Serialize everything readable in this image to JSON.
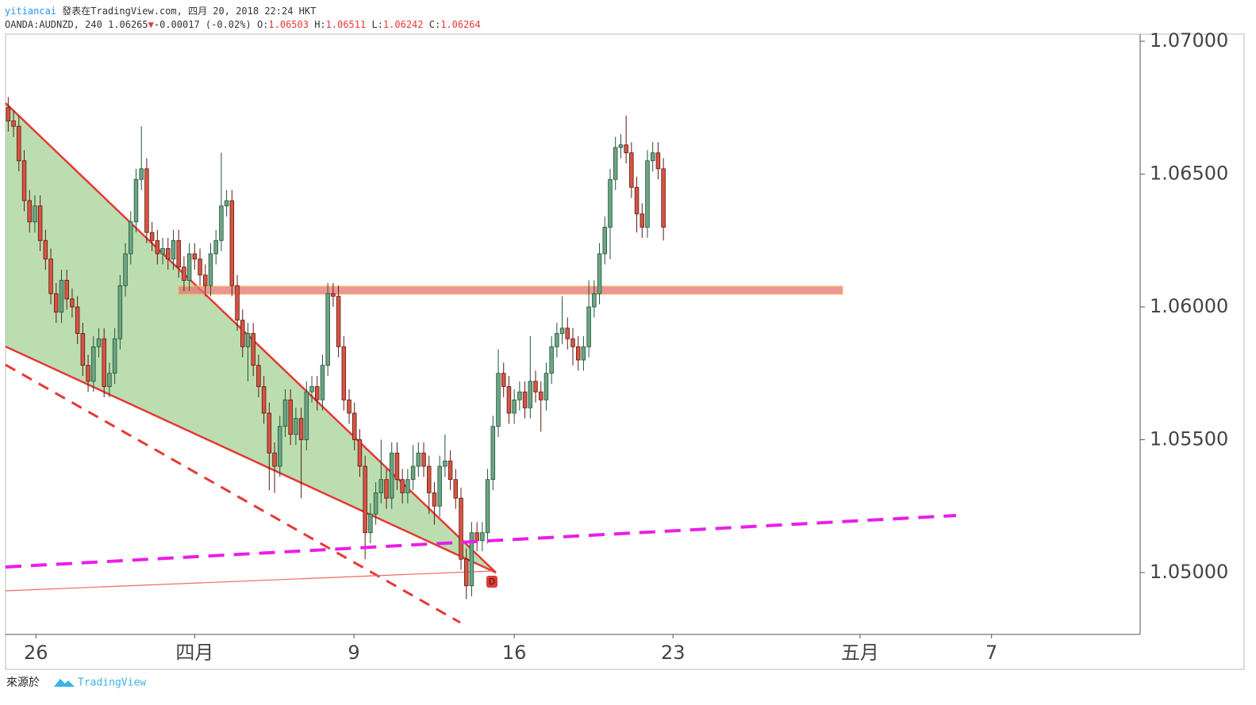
{
  "header": {
    "author": "yitiancai",
    "published": " 發表在TradingView.com, 四月 20, 2018 22:24 HKT",
    "symbol": "OANDA:AUDNZD, 240",
    "last": "1.06265",
    "change": "-0.00017 (-0.02%)",
    "open_label": "O:",
    "open": "1.06503",
    "high_label": "H:",
    "high": "1.06511",
    "low_label": "L:",
    "low": "1.06242",
    "close_label": "C:",
    "close": "1.06264"
  },
  "chart_data": {
    "type": "candlestick",
    "up_color": "#6ba583",
    "down_color": "#d75442",
    "open": [
      1.0675,
      1.067,
      1.0668,
      1.0655,
      1.064,
      1.0632,
      1.0638,
      1.0625,
      1.0618,
      1.0605,
      1.0598,
      1.061,
      1.0603,
      1.06,
      1.059,
      1.0578,
      1.0572,
      1.0585,
      1.0588,
      1.057,
      1.0575,
      1.0588,
      1.0608,
      1.062,
      1.0632,
      1.0648,
      1.0652,
      1.0628,
      1.0625,
      1.062,
      1.0622,
      1.0618,
      1.0625,
      1.0615,
      1.061,
      1.062,
      1.0618,
      1.0612,
      1.0608,
      1.062,
      1.0625,
      1.0638,
      1.064,
      1.0608,
      1.0595,
      1.0585,
      1.059,
      1.0578,
      1.057,
      1.056,
      1.0545,
      1.054,
      1.0555,
      1.0565,
      1.0552,
      1.0558,
      1.055,
      1.0568,
      1.057,
      1.0565,
      1.0578,
      1.0605,
      1.0604,
      1.0585,
      1.0565,
      1.056,
      1.055,
      1.054,
      1.0515,
      1.0522,
      1.053,
      1.0535,
      1.0528,
      1.0545,
      1.0535,
      1.053,
      1.0535,
      1.054,
      1.0545,
      1.054,
      1.053,
      1.0525,
      1.054,
      1.0542,
      1.0535,
      1.0528,
      1.0505,
      1.0495,
      1.0515,
      1.0512,
      1.0515,
      1.0535,
      1.0555,
      1.0575,
      1.057,
      1.056,
      1.0565,
      1.0568,
      1.0562,
      1.0572,
      1.0568,
      1.0565,
      1.0575,
      1.0585,
      1.059,
      1.0592,
      1.0588,
      1.0585,
      1.058,
      1.0585,
      1.06,
      1.0605,
      1.062,
      1.063,
      1.0648,
      1.066,
      1.0661,
      1.0658,
      1.0645,
      1.0635,
      1.063,
      1.0655,
      1.0658,
      1.0652
    ],
    "high": [
      1.0679,
      1.0674,
      1.0672,
      1.0659,
      1.0644,
      1.0642,
      1.0642,
      1.0629,
      1.0622,
      1.0609,
      1.0614,
      1.0614,
      1.0607,
      1.0604,
      1.0594,
      1.0582,
      1.0589,
      1.0592,
      1.0592,
      1.0579,
      1.0592,
      1.0612,
      1.0624,
      1.0636,
      1.0652,
      1.0668,
      1.0656,
      1.0632,
      1.0629,
      1.0626,
      1.0626,
      1.0629,
      1.0629,
      1.0619,
      1.0624,
      1.0624,
      1.0622,
      1.0616,
      1.0624,
      1.0629,
      1.0658,
      1.0644,
      1.0644,
      1.0612,
      1.0599,
      1.0594,
      1.0594,
      1.0582,
      1.0574,
      1.0564,
      1.0549,
      1.0559,
      1.0569,
      1.0569,
      1.0562,
      1.0562,
      1.0572,
      1.0574,
      1.0574,
      1.0582,
      1.0609,
      1.0609,
      1.0608,
      1.0589,
      1.0569,
      1.0564,
      1.0554,
      1.0544,
      1.0526,
      1.0534,
      1.055,
      1.0539,
      1.0549,
      1.0549,
      1.0539,
      1.0539,
      1.0548,
      1.0549,
      1.0549,
      1.0544,
      1.0534,
      1.0544,
      1.0552,
      1.0546,
      1.0539,
      1.0532,
      1.0509,
      1.0519,
      1.0519,
      1.0519,
      1.0539,
      1.0559,
      1.0584,
      1.0579,
      1.0574,
      1.0569,
      1.0572,
      1.0572,
      1.0589,
      1.0576,
      1.0572,
      1.0579,
      1.0589,
      1.0594,
      1.0604,
      1.0596,
      1.0592,
      1.0589,
      1.0589,
      1.061,
      1.061,
      1.0624,
      1.0634,
      1.0652,
      1.0664,
      1.0665,
      1.0672,
      1.0662,
      1.0649,
      1.0639,
      1.0659,
      1.0662,
      1.0662,
      1.0656
    ],
    "low": [
      1.0666,
      1.0664,
      1.0651,
      1.0636,
      1.0628,
      1.0628,
      1.0621,
      1.0614,
      1.0601,
      1.0594,
      1.0594,
      1.0599,
      1.0596,
      1.0586,
      1.0574,
      1.0568,
      1.0568,
      1.0581,
      1.0566,
      1.0566,
      1.0571,
      1.0584,
      1.0604,
      1.0616,
      1.0628,
      1.0644,
      1.0624,
      1.0621,
      1.0616,
      1.0616,
      1.0614,
      1.0614,
      1.0611,
      1.0606,
      1.0606,
      1.0614,
      1.0608,
      1.0604,
      1.0604,
      1.0616,
      1.0621,
      1.0634,
      1.0604,
      1.0591,
      1.0581,
      1.0572,
      1.0574,
      1.0566,
      1.0556,
      1.0531,
      1.053,
      1.0536,
      1.0551,
      1.0548,
      1.0548,
      1.0528,
      1.0546,
      1.0564,
      1.0561,
      1.0561,
      1.0574,
      1.06,
      1.0581,
      1.0561,
      1.0556,
      1.0546,
      1.0536,
      1.0505,
      1.0511,
      1.0518,
      1.0526,
      1.0524,
      1.0524,
      1.0531,
      1.0526,
      1.0526,
      1.0531,
      1.0536,
      1.0536,
      1.0522,
      1.0518,
      1.0521,
      1.0536,
      1.0531,
      1.0524,
      1.0501,
      1.049,
      1.0491,
      1.0508,
      1.0508,
      1.0511,
      1.0531,
      1.0551,
      1.0566,
      1.0556,
      1.0556,
      1.0561,
      1.0558,
      1.0558,
      1.0564,
      1.0553,
      1.0561,
      1.0571,
      1.0581,
      1.0586,
      1.0584,
      1.0578,
      1.0576,
      1.0576,
      1.0581,
      1.0596,
      1.0601,
      1.0616,
      1.0618,
      1.0644,
      1.0656,
      1.0654,
      1.0641,
      1.0628,
      1.0626,
      1.0626,
      1.0651,
      1.0648,
      1.0625
    ],
    "close": [
      1.067,
      1.0668,
      1.0655,
      1.064,
      1.0632,
      1.0638,
      1.0625,
      1.0618,
      1.0605,
      1.0598,
      1.061,
      1.0603,
      1.06,
      1.059,
      1.0578,
      1.0572,
      1.0585,
      1.0588,
      1.057,
      1.0575,
      1.0588,
      1.0608,
      1.062,
      1.0632,
      1.0648,
      1.0652,
      1.0628,
      1.0625,
      1.062,
      1.0622,
      1.0618,
      1.0625,
      1.0615,
      1.061,
      1.062,
      1.0618,
      1.0612,
      1.0608,
      1.062,
      1.0625,
      1.0638,
      1.064,
      1.0608,
      1.0595,
      1.0585,
      1.059,
      1.0578,
      1.057,
      1.056,
      1.0545,
      1.054,
      1.0555,
      1.0565,
      1.0552,
      1.0558,
      1.055,
      1.0568,
      1.057,
      1.0565,
      1.0578,
      1.0605,
      1.0604,
      1.0585,
      1.0565,
      1.056,
      1.055,
      1.054,
      1.0515,
      1.0522,
      1.053,
      1.0535,
      1.0528,
      1.0545,
      1.0535,
      1.053,
      1.0535,
      1.054,
      1.0545,
      1.054,
      1.053,
      1.0525,
      1.054,
      1.0542,
      1.0535,
      1.0528,
      1.0505,
      1.0495,
      1.0515,
      1.0512,
      1.0515,
      1.0535,
      1.0555,
      1.0575,
      1.057,
      1.056,
      1.0565,
      1.0568,
      1.0562,
      1.0572,
      1.0568,
      1.0565,
      1.0575,
      1.0585,
      1.059,
      1.0592,
      1.0588,
      1.0585,
      1.058,
      1.0585,
      1.06,
      1.0605,
      1.062,
      1.063,
      1.0648,
      1.066,
      1.0661,
      1.0658,
      1.0645,
      1.0635,
      1.063,
      1.0655,
      1.0658,
      1.0652,
      1.063
    ],
    "xlim": [
      0,
      213
    ],
    "xticks": [
      {
        "value": 5.7,
        "label": "26"
      },
      {
        "value": 35.5,
        "label": "四月"
      },
      {
        "value": 65.4,
        "label": "9"
      },
      {
        "value": 95.5,
        "label": "16"
      },
      {
        "value": 125.3,
        "label": "23"
      },
      {
        "value": 160.4,
        "label": "五月"
      },
      {
        "value": 185.1,
        "label": "7"
      }
    ],
    "ylim": [
      1.04767,
      1.07027
    ],
    "yticks": [
      {
        "value": 1.05,
        "label": "1.05000"
      },
      {
        "value": 1.055,
        "label": "1.05500"
      },
      {
        "value": 1.06,
        "label": "1.06000"
      },
      {
        "value": 1.065,
        "label": "1.06500"
      },
      {
        "value": 1.07,
        "label": "1.07000"
      }
    ],
    "annotation": "D"
  },
  "footer": {
    "source": "來源於",
    "brand": "TradingView"
  }
}
